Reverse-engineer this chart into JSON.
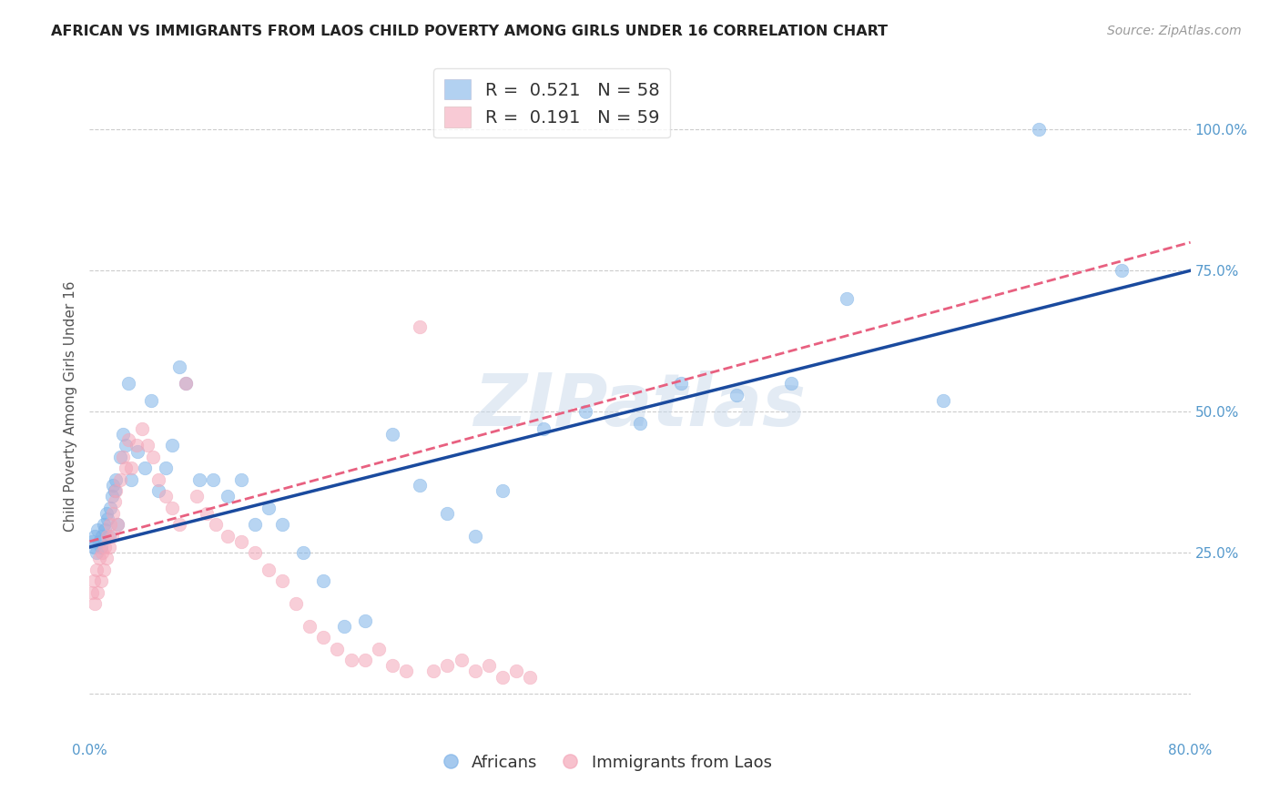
{
  "title": "AFRICAN VS IMMIGRANTS FROM LAOS CHILD POVERTY AMONG GIRLS UNDER 16 CORRELATION CHART",
  "source": "Source: ZipAtlas.com",
  "ylabel": "Child Poverty Among Girls Under 16",
  "xlim": [
    0.0,
    0.8
  ],
  "ylim": [
    -0.08,
    1.1
  ],
  "x_ticks": [
    0.0,
    0.1,
    0.2,
    0.3,
    0.4,
    0.5,
    0.6,
    0.7,
    0.8
  ],
  "x_tick_labels": [
    "0.0%",
    "",
    "",
    "",
    "",
    "",
    "",
    "",
    "80.0%"
  ],
  "y_ticks": [
    0.0,
    0.25,
    0.5,
    0.75,
    1.0
  ],
  "y_tick_labels": [
    "",
    "25.0%",
    "50.0%",
    "75.0%",
    "100.0%"
  ],
  "grid_color": "#cccccc",
  "background_color": "#ffffff",
  "watermark": "ZIPatlas",
  "blue_color": "#7fb3e8",
  "pink_color": "#f4a7b9",
  "blue_line_color": "#1a4a9e",
  "pink_line_color": "#e86080",
  "legend_R_blue": "0.521",
  "legend_N_blue": "58",
  "legend_R_pink": "0.191",
  "legend_N_pink": "59",
  "blue_scatter_x": [
    0.002,
    0.003,
    0.004,
    0.005,
    0.006,
    0.007,
    0.008,
    0.009,
    0.01,
    0.011,
    0.012,
    0.013,
    0.014,
    0.015,
    0.016,
    0.017,
    0.018,
    0.019,
    0.02,
    0.022,
    0.024,
    0.026,
    0.028,
    0.03,
    0.035,
    0.04,
    0.045,
    0.05,
    0.055,
    0.06,
    0.065,
    0.07,
    0.08,
    0.09,
    0.1,
    0.11,
    0.12,
    0.13,
    0.14,
    0.155,
    0.17,
    0.185,
    0.2,
    0.22,
    0.24,
    0.26,
    0.28,
    0.3,
    0.33,
    0.36,
    0.4,
    0.43,
    0.47,
    0.51,
    0.55,
    0.62,
    0.69,
    0.75
  ],
  "blue_scatter_y": [
    0.27,
    0.26,
    0.28,
    0.25,
    0.29,
    0.27,
    0.26,
    0.28,
    0.3,
    0.29,
    0.32,
    0.31,
    0.28,
    0.33,
    0.35,
    0.37,
    0.36,
    0.38,
    0.3,
    0.42,
    0.46,
    0.44,
    0.55,
    0.38,
    0.43,
    0.4,
    0.52,
    0.36,
    0.4,
    0.44,
    0.58,
    0.55,
    0.38,
    0.38,
    0.35,
    0.38,
    0.3,
    0.33,
    0.3,
    0.25,
    0.2,
    0.12,
    0.13,
    0.46,
    0.37,
    0.32,
    0.28,
    0.36,
    0.47,
    0.5,
    0.48,
    0.55,
    0.53,
    0.55,
    0.7,
    0.52,
    1.0,
    0.75
  ],
  "pink_scatter_x": [
    0.002,
    0.003,
    0.004,
    0.005,
    0.006,
    0.007,
    0.008,
    0.009,
    0.01,
    0.011,
    0.012,
    0.013,
    0.014,
    0.015,
    0.016,
    0.017,
    0.018,
    0.019,
    0.02,
    0.022,
    0.024,
    0.026,
    0.028,
    0.03,
    0.034,
    0.038,
    0.042,
    0.046,
    0.05,
    0.055,
    0.06,
    0.065,
    0.07,
    0.078,
    0.085,
    0.092,
    0.1,
    0.11,
    0.12,
    0.13,
    0.14,
    0.15,
    0.16,
    0.17,
    0.18,
    0.19,
    0.2,
    0.21,
    0.22,
    0.23,
    0.24,
    0.25,
    0.26,
    0.27,
    0.28,
    0.29,
    0.3,
    0.31,
    0.32
  ],
  "pink_scatter_y": [
    0.18,
    0.2,
    0.16,
    0.22,
    0.18,
    0.24,
    0.2,
    0.25,
    0.22,
    0.26,
    0.24,
    0.28,
    0.26,
    0.3,
    0.28,
    0.32,
    0.34,
    0.36,
    0.3,
    0.38,
    0.42,
    0.4,
    0.45,
    0.4,
    0.44,
    0.47,
    0.44,
    0.42,
    0.38,
    0.35,
    0.33,
    0.3,
    0.55,
    0.35,
    0.32,
    0.3,
    0.28,
    0.27,
    0.25,
    0.22,
    0.2,
    0.16,
    0.12,
    0.1,
    0.08,
    0.06,
    0.06,
    0.08,
    0.05,
    0.04,
    0.65,
    0.04,
    0.05,
    0.06,
    0.04,
    0.05,
    0.03,
    0.04,
    0.03
  ],
  "blue_line_x0": 0.0,
  "blue_line_y0": 0.26,
  "blue_line_x1": 0.8,
  "blue_line_y1": 0.75,
  "pink_line_x0": 0.0,
  "pink_line_y0": 0.27,
  "pink_line_x1": 0.8,
  "pink_line_y1": 0.8
}
